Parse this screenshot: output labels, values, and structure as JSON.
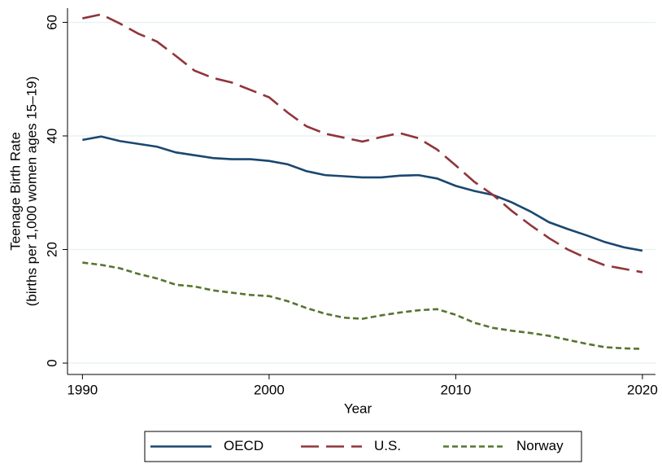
{
  "chart_data": {
    "type": "line",
    "xlabel": "Year",
    "ylabel": [
      "Teenage Birth Rate",
      "(births per 1,000 women ages 15–19)"
    ],
    "x": [
      1990,
      1991,
      1992,
      1993,
      1994,
      1995,
      1996,
      1997,
      1998,
      1999,
      2000,
      2001,
      2002,
      2003,
      2004,
      2005,
      2006,
      2007,
      2008,
      2009,
      2010,
      2011,
      2012,
      2013,
      2014,
      2015,
      2016,
      2017,
      2018,
      2019,
      2020
    ],
    "series": [
      {
        "name": "OECD",
        "color": "#1a476f",
        "style": "solid",
        "values": [
          39.3,
          39.9,
          39.1,
          38.6,
          38.1,
          37.1,
          36.6,
          36.1,
          35.9,
          35.9,
          35.6,
          35.0,
          33.8,
          33.1,
          32.9,
          32.7,
          32.7,
          33.0,
          33.1,
          32.5,
          31.2,
          30.3,
          29.6,
          28.3,
          26.7,
          24.8,
          23.6,
          22.5,
          21.3,
          20.4,
          19.8
        ]
      },
      {
        "name": "U.S.",
        "color": "#90353b",
        "style": "longdash",
        "values": [
          60.7,
          61.4,
          59.8,
          58.0,
          56.6,
          54.1,
          51.5,
          50.2,
          49.4,
          48.1,
          46.8,
          44.1,
          41.7,
          40.4,
          39.7,
          39.0,
          39.8,
          40.5,
          39.6,
          37.6,
          34.8,
          31.9,
          29.6,
          26.8,
          24.3,
          22.0,
          20.0,
          18.5,
          17.2,
          16.6,
          16.0
        ]
      },
      {
        "name": "Norway",
        "color": "#55752f",
        "style": "shortdash",
        "values": [
          17.7,
          17.3,
          16.7,
          15.7,
          14.9,
          13.8,
          13.5,
          12.8,
          12.4,
          12.0,
          11.8,
          10.9,
          9.7,
          8.7,
          8.0,
          7.8,
          8.4,
          8.9,
          9.3,
          9.5,
          8.5,
          7.1,
          6.2,
          5.7,
          5.3,
          4.8,
          4.1,
          3.4,
          2.8,
          2.6,
          2.5
        ]
      }
    ],
    "xlim": [
      1989.2,
      2020.7
    ],
    "xticks": [
      1990,
      2000,
      2010,
      2020
    ],
    "ylim": [
      -2,
      62.5
    ],
    "yticks": [
      0,
      20,
      40,
      60
    ],
    "grid": true,
    "legend": "bottom"
  }
}
